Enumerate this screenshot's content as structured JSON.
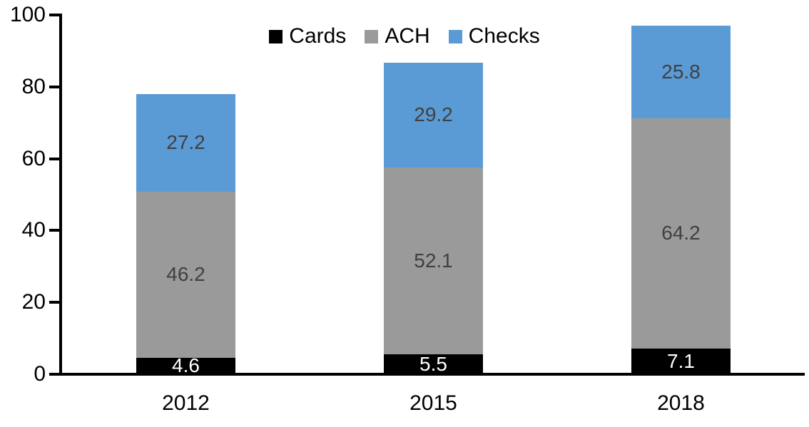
{
  "chart_data": {
    "type": "bar",
    "stacked": true,
    "title": "",
    "categories": [
      "2012",
      "2015",
      "2018"
    ],
    "series": [
      {
        "name": "Cards",
        "color": "#000000",
        "label_color": "#ffffff",
        "values": [
          4.6,
          5.5,
          7.1
        ]
      },
      {
        "name": "ACH",
        "color": "#9A9A9A",
        "label_color": "#404040",
        "values": [
          46.2,
          52.1,
          64.2
        ]
      },
      {
        "name": "Checks",
        "color": "#5B9BD5",
        "label_color": "#404040",
        "values": [
          27.2,
          29.2,
          25.8
        ]
      }
    ],
    "yticks": [
      0,
      20,
      40,
      60,
      80,
      100
    ],
    "ylim": [
      0,
      100
    ],
    "xlabel": "",
    "ylabel": "",
    "grid": false,
    "legend_position": "top-center",
    "axis_color": "#000000",
    "background_color": "#ffffff"
  }
}
